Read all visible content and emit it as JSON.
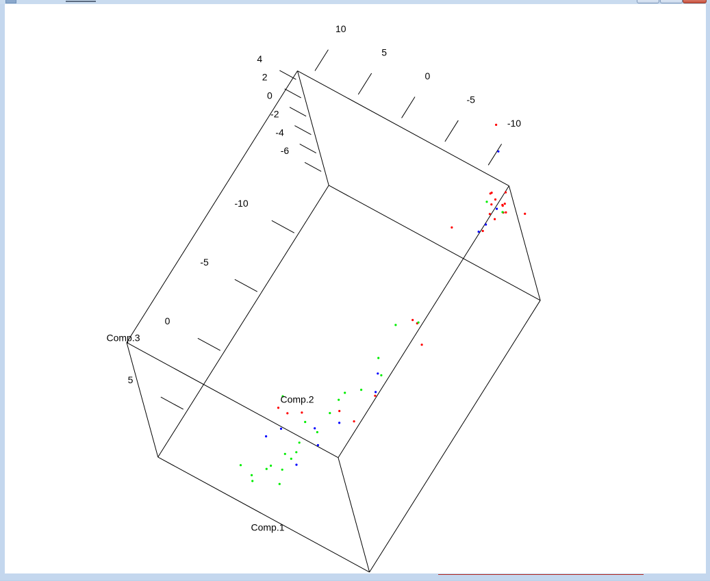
{
  "window": {
    "close_color": "#c8503c"
  },
  "chart_data": {
    "type": "scatter",
    "title": "",
    "axes": {
      "x": {
        "label": "Comp.1",
        "ticks": [
          {
            "value": -10,
            "label": "-10"
          },
          {
            "value": -5,
            "label": "-5"
          },
          {
            "value": 0,
            "label": "0"
          },
          {
            "value": 5,
            "label": "5"
          }
        ]
      },
      "y": {
        "label": "Comp.2",
        "ticks": [
          {
            "value": -10,
            "label": "-10"
          },
          {
            "value": -5,
            "label": "-5"
          },
          {
            "value": 0,
            "label": "0"
          },
          {
            "value": 5,
            "label": "5"
          },
          {
            "value": 10,
            "label": "10"
          }
        ]
      },
      "z": {
        "label": "Comp.3",
        "ticks": [
          {
            "value": 4,
            "label": "4"
          },
          {
            "value": 2,
            "label": "2"
          },
          {
            "value": 0,
            "label": "0"
          },
          {
            "value": -2,
            "label": "-2"
          },
          {
            "value": -4,
            "label": "-4"
          },
          {
            "value": -6,
            "label": "-6"
          }
        ]
      }
    },
    "box": true,
    "grid": false,
    "series": [
      {
        "color": "#ff0000",
        "points": [
          {
            "x": -12.0,
            "y": -12.9,
            "z": 4.8
          },
          {
            "x": -12.5,
            "y": -11.7,
            "z": 4.1
          },
          {
            "x": -14.2,
            "y": -11.5,
            "z": 2.0
          },
          {
            "x": -14.3,
            "y": -11.0,
            "z": 1.6
          },
          {
            "x": -15.0,
            "y": -9.4,
            "z": 1.3
          },
          {
            "x": -14.9,
            "y": -10.3,
            "z": 1.3
          },
          {
            "x": -15.8,
            "y": -8.0,
            "z": 0.3
          },
          {
            "x": -15.2,
            "y": -8.4,
            "z": 0.0
          },
          {
            "x": -16.0,
            "y": -7.5,
            "z": -0.3
          },
          {
            "x": -16.5,
            "y": -8.9,
            "z": -0.1
          },
          {
            "x": -16.2,
            "y": -8.8,
            "z": -1.0
          },
          {
            "x": -16.3,
            "y": -8.3,
            "z": -1.6
          },
          {
            "x": -17.0,
            "y": -10.0,
            "z": -2.5
          },
          {
            "x": -20.4,
            "y": -4.5,
            "z": 0.0
          },
          {
            "x": -16.0,
            "y": -5.1,
            "z": -5.6
          },
          {
            "x": -14.9,
            "y": -2.6,
            "z": -5.1
          },
          {
            "x": -5.9,
            "y": -7.3,
            "z": -1.6
          },
          {
            "x": -6.6,
            "y": -5.8,
            "z": -2.9
          },
          {
            "x": -5.3,
            "y": -8.0,
            "z": -2.8
          },
          {
            "x": -1.6,
            "y": -5.1,
            "z": -5.1
          },
          {
            "x": 0.7,
            "y": -4.6,
            "z": -5.2
          },
          {
            "x": 0.0,
            "y": -2.0,
            "z": -6.3
          },
          {
            "x": 0.8,
            "y": 2.0,
            "z": -7.5
          },
          {
            "x": 2.2,
            "y": 3.0,
            "z": -5.7
          },
          {
            "x": 0.3,
            "y": 4.7,
            "z": -9.6
          }
        ]
      },
      {
        "color": "#00ee00",
        "points": [
          {
            "x": -15.8,
            "y": -7.0,
            "z": -1.2
          },
          {
            "x": -14.1,
            "y": -11.2,
            "z": 2.0
          },
          {
            "x": -5.5,
            "y": -4.9,
            "z": -2.5
          },
          {
            "x": -5.9,
            "y": -7.5,
            "z": -1.4
          },
          {
            "x": -4.9,
            "y": -2.2,
            "z": -6.7
          },
          {
            "x": -4.1,
            "y": -3.1,
            "z": -7.1
          },
          {
            "x": -1.0,
            "y": -4.3,
            "z": -4.1
          },
          {
            "x": 0.2,
            "y": -3.7,
            "z": -3.2
          },
          {
            "x": 1.1,
            "y": -3.9,
            "z": -2.7
          },
          {
            "x": 2.0,
            "y": -3.5,
            "z": -3.2
          },
          {
            "x": 2.7,
            "y": -2.1,
            "z": -5.1
          },
          {
            "x": 3.8,
            "y": -0.1,
            "z": -6.9
          },
          {
            "x": 3.8,
            "y": 1.5,
            "z": -7.9
          },
          {
            "x": 3.2,
            "y": 1.7,
            "z": -9.3
          },
          {
            "x": 1.6,
            "y": 2.3,
            "z": -9.9
          },
          {
            "x": 4.4,
            "y": 1.6,
            "z": -8.9
          },
          {
            "x": 5.3,
            "y": 1.2,
            "z": -9.1
          },
          {
            "x": 6.1,
            "y": 3.5,
            "z": -8.3
          },
          {
            "x": 5.2,
            "y": 4.9,
            "z": -10.8
          },
          {
            "x": 5.0,
            "y": 6.2,
            "z": -10.0
          },
          {
            "x": 3.7,
            "y": 4.7,
            "z": -11.3
          },
          {
            "x": 3.0,
            "y": 5.0,
            "z": -12.0
          },
          {
            "x": -1.5,
            "y": 5.2,
            "z": -13.1
          },
          {
            "x": -2.2,
            "y": 8.3,
            "z": -12.8
          }
        ]
      },
      {
        "color": "#0000ff",
        "points": [
          {
            "x": -10.3,
            "y": -12.7,
            "z": 5.5
          },
          {
            "x": -11.3,
            "y": -12.5,
            "z": 4.9
          },
          {
            "x": -17.7,
            "y": -7.7,
            "z": 2.2
          },
          {
            "x": -15.8,
            "y": -8.1,
            "z": -1.4
          },
          {
            "x": -3.4,
            "y": -3.7,
            "z": -5.7
          },
          {
            "x": -1.6,
            "y": -5.3,
            "z": -4.6
          },
          {
            "x": 1.5,
            "y": -3.7,
            "z": -4.8
          },
          {
            "x": 3.6,
            "y": -3.0,
            "z": -4.9
          },
          {
            "x": 1.8,
            "y": -0.6,
            "z": -6.6
          },
          {
            "x": 1.3,
            "y": 4.7,
            "z": -10.0
          },
          {
            "x": 2.0,
            "y": 6.0,
            "z": -10.6
          },
          {
            "x": 3.0,
            "y": 1.5,
            "z": -10.1
          }
        ]
      }
    ]
  }
}
